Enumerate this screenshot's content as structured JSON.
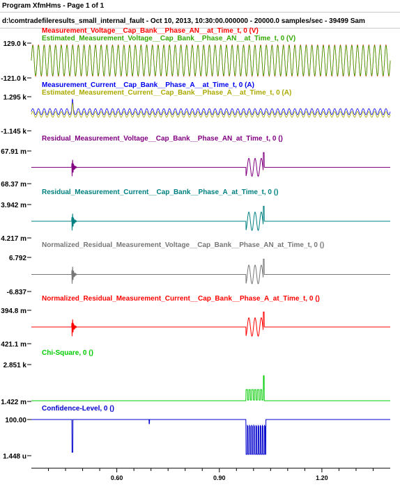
{
  "header": {
    "program": "Program XfmHms - Page 1 of 1",
    "file": "d:\\comtradefileresults_small_internal_fault - Oct 10, 2013, 10:30:00.000000 - 20000.0 samples/sec - 39499 Sam"
  },
  "chart_data": {
    "type": "line",
    "x_ticks": [
      "0.60",
      "0.90",
      "1.20"
    ],
    "x_tick_values": [
      0.6,
      0.9,
      1.2
    ],
    "xlim": [
      0.35,
      1.4
    ],
    "fault_time": 1.03,
    "panels": [
      {
        "id": "p1",
        "y_top_label": "129.0 k",
        "y_bottom_label": "-121.0 k",
        "series": [
          {
            "name": "Measurement_Voltage__Cap_Bank__Phase_AN__at_Time_t, 0 (V)",
            "color": "#ff0000"
          },
          {
            "name": "Estimated_Measurement_Voltage__Cap_Bank__Phase_AN__at_Time_t, 0 (V)",
            "color": "#33aa00"
          }
        ]
      },
      {
        "id": "p2",
        "y_top_label": "1.295 k",
        "y_bottom_label": "-1.145 k",
        "series": [
          {
            "name": "Measurement_Current__Cap_Bank__Phase_A__at_Time_t, 0 (A)",
            "color": "#0000ee"
          },
          {
            "name": "Estimated_Measurement_Current__Cap_Bank__Phase_A__at_Time_t, 0 (A)",
            "color": "#aaaa00"
          }
        ]
      },
      {
        "id": "p3",
        "y_top_label": "67.91 m",
        "y_bottom_label": "68.37 m",
        "series": [
          {
            "name": "Residual_Measurement_Voltage__Cap_Bank__Phase_AN_at_Time_t, 0 ()",
            "color": "#800080"
          }
        ]
      },
      {
        "id": "p4",
        "y_top_label": "3.942 m",
        "y_bottom_label": "4.217 m",
        "series": [
          {
            "name": "Residual_Measurement_Current__Cap_Bank__Phase_A_at_Time_t, 0 ()",
            "color": "#008080"
          }
        ]
      },
      {
        "id": "p5",
        "y_top_label": "6.792",
        "y_bottom_label": "-6.837",
        "series": [
          {
            "name": "Normalized_Residual_Measurement_Voltage__Cap_Bank__Phase_AN_at_Time_t, 0 ()",
            "color": "#777777"
          }
        ]
      },
      {
        "id": "p6",
        "y_top_label": "394.8 m",
        "y_bottom_label": "421.1 m",
        "series": [
          {
            "name": "Normalized_Residual_Measurement_Current__Cap_Bank__Phase_A_at_Time_t, 0 ()",
            "color": "#ff0000"
          }
        ]
      },
      {
        "id": "p7",
        "y_top_label": "2.851 k",
        "y_bottom_label": "1.422 m",
        "series": [
          {
            "name": "Chi-Square, 0 ()",
            "color": "#00cc00"
          }
        ]
      },
      {
        "id": "p8",
        "y_top_label": "100.00",
        "y_bottom_label": "1.448 u",
        "series": [
          {
            "name": "Confidence-Level, 0 ()",
            "color": "#0000cc"
          }
        ]
      }
    ]
  }
}
